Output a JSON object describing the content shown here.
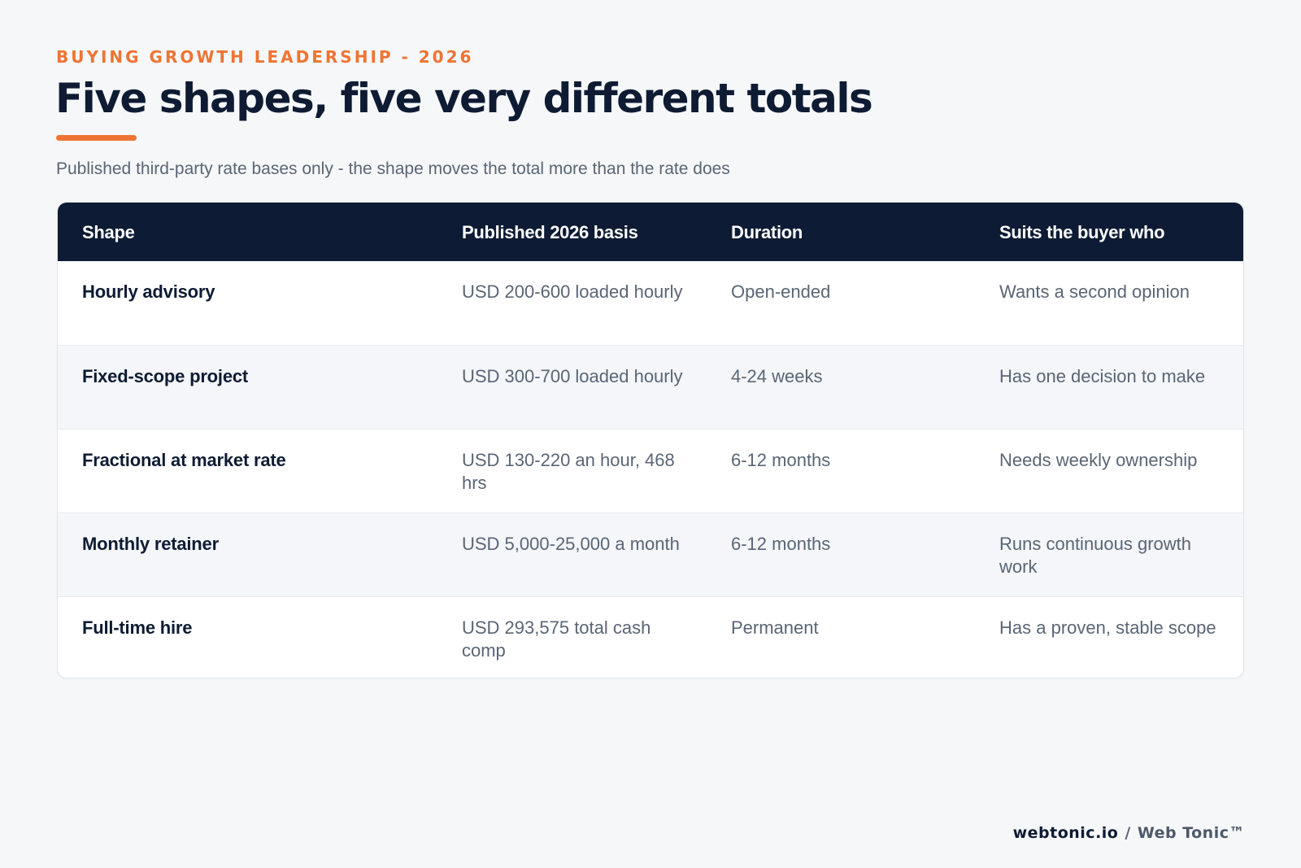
{
  "header": {
    "eyebrow": "BUYING GROWTH LEADERSHIP - 2026",
    "title": "Five shapes, five very different totals",
    "subtitle": "Published third-party rate bases only - the shape moves the total more than the rate does"
  },
  "table": {
    "columns": [
      "Shape",
      "Published 2026 basis",
      "Duration",
      "Suits the buyer who"
    ],
    "rows": [
      {
        "shape": "Hourly advisory",
        "basis": "USD 200-600 loaded hourly",
        "duration": "Open-ended",
        "suits": "Wants a second opinion"
      },
      {
        "shape": "Fixed-scope project",
        "basis": "USD 300-700 loaded hourly",
        "duration": "4-24 weeks",
        "suits": "Has one decision to make"
      },
      {
        "shape": "Fractional at market rate",
        "basis": "USD 130-220 an hour, 468 hrs",
        "duration": "6-12 months",
        "suits": "Needs weekly ownership"
      },
      {
        "shape": "Monthly retainer",
        "basis": "USD 5,000-25,000 a month",
        "duration": "6-12 months",
        "suits": "Runs continuous growth work"
      },
      {
        "shape": "Full-time hire",
        "basis": "USD 293,575 total cash comp",
        "duration": "Permanent",
        "suits": "Has a proven, stable scope"
      }
    ]
  },
  "footer": {
    "site": "webtonic.io",
    "separator": "/",
    "brand": "Web Tonic™"
  },
  "colors": {
    "accent": "#ee7433",
    "navy": "#0d1b34",
    "background": "#f6f7f9"
  }
}
